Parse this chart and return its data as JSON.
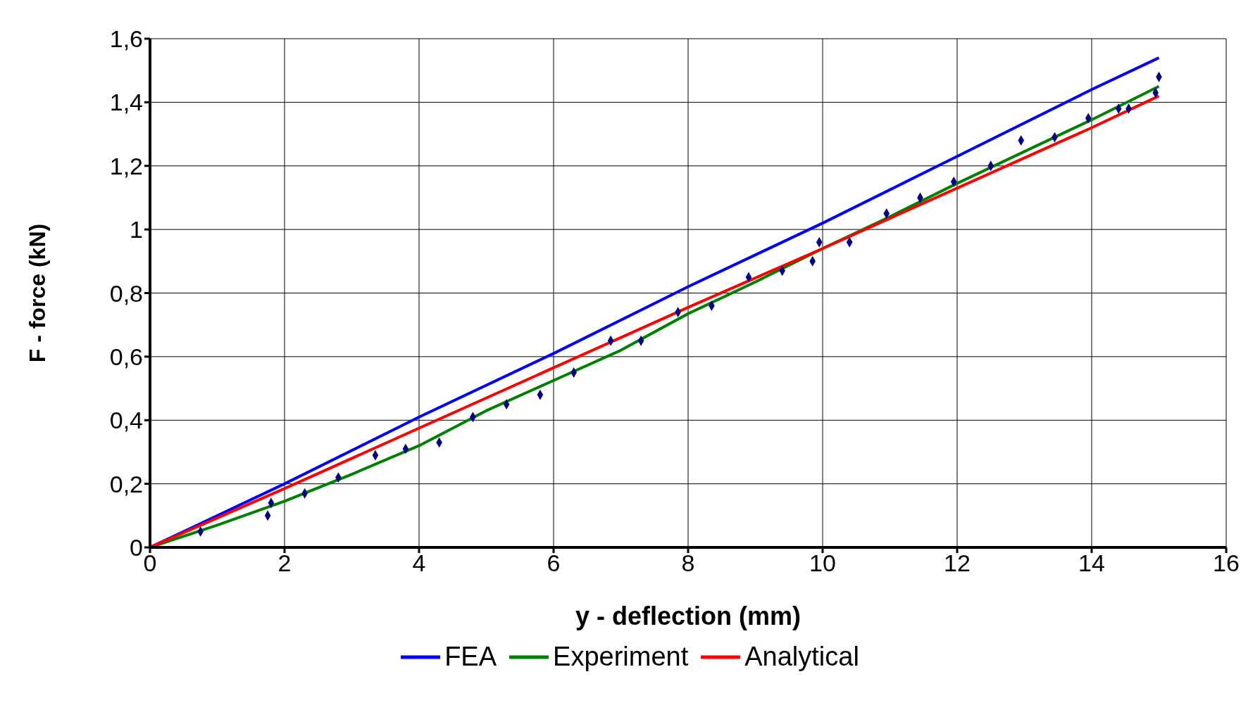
{
  "chart_data": {
    "type": "line",
    "xlabel": "y - deflection (mm)",
    "ylabel": "F - force (kN)",
    "xlim": [
      0,
      16
    ],
    "xticks": [
      0,
      2,
      4,
      6,
      8,
      10,
      12,
      14,
      16
    ],
    "ylim": [
      0,
      1.6
    ],
    "yticks": [
      0,
      {
        "value": 0.2,
        "label": "0,2"
      },
      {
        "value": 0.4,
        "label": "0,4"
      },
      {
        "value": 0.6,
        "label": "0,6"
      },
      {
        "value": 0.8,
        "label": "0,8"
      },
      1,
      {
        "value": 1.2,
        "label": "1,2"
      },
      {
        "value": 1.4,
        "label": "1,4"
      },
      {
        "value": 1.6,
        "label": "1,6"
      }
    ],
    "grid": true,
    "legend": "bottom",
    "marker": "none",
    "line_style": "solid",
    "series": [
      {
        "name": "FEA",
        "color": "#0000ff",
        "x": [
          0,
          2,
          4,
          6,
          8,
          10,
          12,
          14,
          15
        ],
        "values": [
          0,
          0.2,
          0.41,
          0.61,
          0.82,
          1.02,
          1.23,
          1.44,
          1.54
        ]
      },
      {
        "name": "Experiment",
        "color": "#008000",
        "x": [
          0,
          1,
          2,
          3,
          4,
          5,
          6,
          7,
          8,
          9,
          10,
          11,
          12,
          13,
          14,
          15
        ],
        "values": [
          0,
          0.07,
          0.145,
          0.23,
          0.32,
          0.43,
          0.525,
          0.62,
          0.735,
          0.835,
          0.94,
          1.04,
          1.145,
          1.245,
          1.345,
          1.45
        ]
      },
      {
        "name": "Analytical",
        "color": "#ff0000",
        "x": [
          0,
          2,
          4,
          6,
          8,
          10,
          12,
          14,
          15
        ],
        "values": [
          0,
          0.185,
          0.375,
          0.565,
          0.755,
          0.94,
          1.13,
          1.32,
          1.42
        ]
      },
      {
        "type": "scatter",
        "marker": "diamond",
        "color": "#000080",
        "x": [
          0.75,
          1.75,
          1.8,
          2.3,
          2.8,
          3.35,
          3.8,
          4.3,
          4.8,
          5.3,
          5.8,
          6.3,
          6.85,
          7.3,
          7.85,
          8.35,
          8.9,
          9.4,
          9.85,
          9.95,
          10.4,
          10.95,
          11.45,
          11.95,
          12.5,
          12.95,
          13.45,
          13.95,
          14.4,
          14.55,
          14.95,
          15
        ],
        "values": [
          0.05,
          0.1,
          0.14,
          0.17,
          0.22,
          0.29,
          0.31,
          0.33,
          0.41,
          0.45,
          0.48,
          0.55,
          0.65,
          0.65,
          0.74,
          0.76,
          0.85,
          0.87,
          0.9,
          0.96,
          0.96,
          1.05,
          1.1,
          1.15,
          1.2,
          1.28,
          1.29,
          1.35,
          1.38,
          1.38,
          1.43,
          1.48
        ]
      }
    ]
  }
}
